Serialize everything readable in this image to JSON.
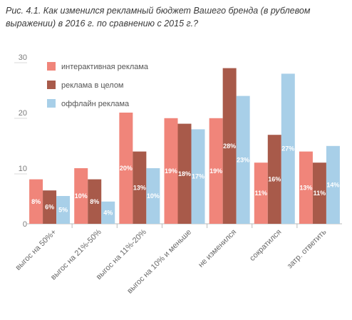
{
  "chart_data": {
    "type": "bar",
    "title": "Рис. 4.1. Как изменился рекламный бюджет Вашего бренда (в рублевом выражении) в 2016 г. по сравнению с 2015 г.?",
    "categories": [
      "выгос на 50%+",
      "выгос на 21%-50%",
      "выгос на 11%-20%",
      "выгос на 10% и меньше",
      "не изменился",
      "сократился",
      "затр. ответить"
    ],
    "series": [
      {
        "name": "интерактивная реклама",
        "color": "#f0857a",
        "values": [
          8,
          10,
          20,
          19,
          19,
          11,
          13
        ],
        "labels": [
          "8%",
          "10%",
          "20%",
          "19%",
          "19%",
          "11%",
          "13%"
        ]
      },
      {
        "name": "реклама в целом",
        "color": "#a85a4a",
        "values": [
          6,
          8,
          13,
          18,
          28,
          16,
          11
        ],
        "labels": [
          "6%",
          "8%",
          "13%",
          "18%",
          "28%",
          "16%",
          "11%"
        ]
      },
      {
        "name": "оффлайн реклама",
        "color": "#a8cfe8",
        "values": [
          5,
          4,
          10,
          17,
          23,
          27,
          14
        ],
        "labels": [
          "5%",
          "4%",
          "10%",
          "17%",
          "23%",
          "27%",
          "14%"
        ]
      }
    ],
    "yticks": [
      "0",
      "10",
      "20",
      "30"
    ],
    "ylim": [
      0,
      30
    ],
    "grid": false,
    "legend": "top-left",
    "xlabel": "",
    "ylabel": ""
  }
}
